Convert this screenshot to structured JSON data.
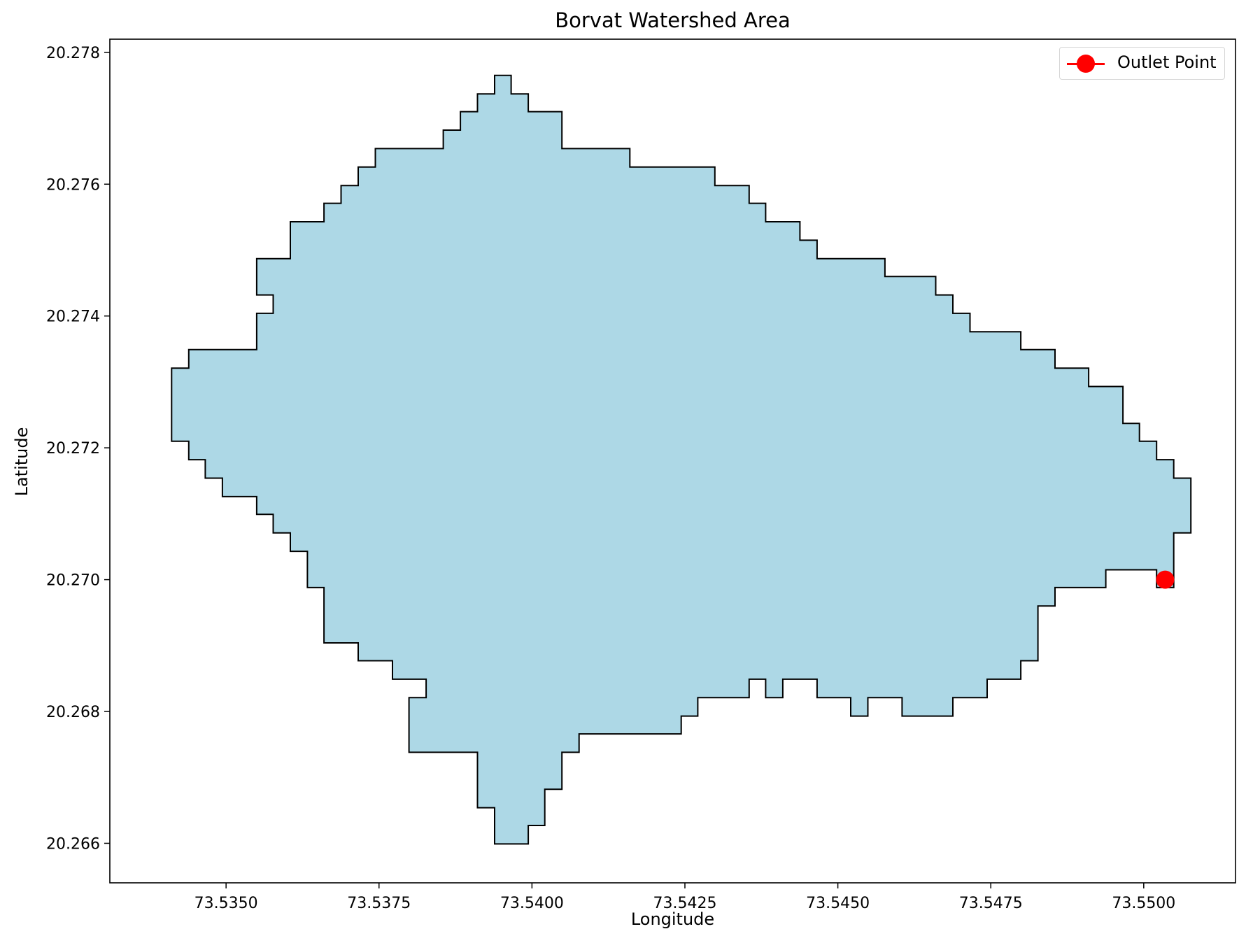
{
  "title": "Borvat Watershed Area",
  "xlabel": "Longitude",
  "ylabel": "Latitude",
  "legend": {
    "label": "Outlet Point",
    "placement": "top-right"
  },
  "colors": {
    "fill": "#add8e6",
    "edge": "#000000",
    "marker": "#ff0000"
  },
  "chart_data": {
    "type": "map",
    "title": "Borvat Watershed Area",
    "xlabel": "Longitude",
    "ylabel": "Latitude",
    "xlim": [
      73.5331,
      73.5515
    ],
    "ylim": [
      20.2654,
      20.2782
    ],
    "xticks": [
      "73.5350",
      "73.5375",
      "73.5400",
      "73.5425",
      "73.5450",
      "73.5475",
      "73.5500"
    ],
    "yticks": [
      "20.266",
      "20.268",
      "20.270",
      "20.272",
      "20.274",
      "20.276",
      "20.278"
    ],
    "grid": false,
    "watershed_boundary": [
      [
        73.53939,
        20.27765
      ],
      [
        73.53966,
        20.27765
      ],
      [
        73.53966,
        20.27737
      ],
      [
        73.53994,
        20.27737
      ],
      [
        73.53994,
        20.2771
      ],
      [
        73.54049,
        20.2771
      ],
      [
        73.54049,
        20.27654
      ],
      [
        73.5416,
        20.27654
      ],
      [
        73.5416,
        20.27626
      ],
      [
        73.54299,
        20.27626
      ],
      [
        73.54299,
        20.27598
      ],
      [
        73.54355,
        20.27598
      ],
      [
        73.54355,
        20.27571
      ],
      [
        73.54382,
        20.27571
      ],
      [
        73.54382,
        20.27543
      ],
      [
        73.54438,
        20.27543
      ],
      [
        73.54438,
        20.27515
      ],
      [
        73.54466,
        20.27515
      ],
      [
        73.54466,
        20.27487
      ],
      [
        73.54577,
        20.27487
      ],
      [
        73.54577,
        20.2746
      ],
      [
        73.5466,
        20.2746
      ],
      [
        73.5466,
        20.27432
      ],
      [
        73.54688,
        20.27432
      ],
      [
        73.54688,
        20.27404
      ],
      [
        73.54716,
        20.27404
      ],
      [
        73.54716,
        20.27376
      ],
      [
        73.54799,
        20.27376
      ],
      [
        73.54799,
        20.27349
      ],
      [
        73.54855,
        20.27349
      ],
      [
        73.54855,
        20.27321
      ],
      [
        73.5491,
        20.27321
      ],
      [
        73.5491,
        20.27293
      ],
      [
        73.54966,
        20.27293
      ],
      [
        73.54966,
        20.27237
      ],
      [
        73.54993,
        20.27237
      ],
      [
        73.54993,
        20.2721
      ],
      [
        73.55021,
        20.2721
      ],
      [
        73.55021,
        20.27182
      ],
      [
        73.55049,
        20.27182
      ],
      [
        73.55049,
        20.27154
      ],
      [
        73.55077,
        20.27154
      ],
      [
        73.55077,
        20.27071
      ],
      [
        73.55049,
        20.27071
      ],
      [
        73.55049,
        20.26988
      ],
      [
        73.55021,
        20.26988
      ],
      [
        73.55021,
        20.27015
      ],
      [
        73.54938,
        20.27015
      ],
      [
        73.54938,
        20.26988
      ],
      [
        73.54855,
        20.26988
      ],
      [
        73.54855,
        20.2696
      ],
      [
        73.54827,
        20.2696
      ],
      [
        73.54827,
        20.26877
      ],
      [
        73.54799,
        20.26877
      ],
      [
        73.54799,
        20.26849
      ],
      [
        73.54744,
        20.26849
      ],
      [
        73.54744,
        20.26821
      ],
      [
        73.54688,
        20.26821
      ],
      [
        73.54688,
        20.26793
      ],
      [
        73.54605,
        20.26793
      ],
      [
        73.54605,
        20.26821
      ],
      [
        73.54549,
        20.26821
      ],
      [
        73.54549,
        20.26793
      ],
      [
        73.54521,
        20.26793
      ],
      [
        73.54521,
        20.26821
      ],
      [
        73.54466,
        20.26821
      ],
      [
        73.54466,
        20.26849
      ],
      [
        73.5441,
        20.26849
      ],
      [
        73.5441,
        20.26821
      ],
      [
        73.54382,
        20.26821
      ],
      [
        73.54382,
        20.26849
      ],
      [
        73.54355,
        20.26849
      ],
      [
        73.54355,
        20.26821
      ],
      [
        73.54271,
        20.26821
      ],
      [
        73.54271,
        20.26793
      ],
      [
        73.54244,
        20.26793
      ],
      [
        73.54244,
        20.26766
      ],
      [
        73.54077,
        20.26766
      ],
      [
        73.54077,
        20.26738
      ],
      [
        73.54049,
        20.26738
      ],
      [
        73.54049,
        20.26682
      ],
      [
        73.54021,
        20.26682
      ],
      [
        73.54021,
        20.26627
      ],
      [
        73.53994,
        20.26627
      ],
      [
        73.53994,
        20.26599
      ],
      [
        73.53939,
        20.26599
      ],
      [
        73.53939,
        20.26654
      ],
      [
        73.53911,
        20.26654
      ],
      [
        73.53911,
        20.26738
      ],
      [
        73.53799,
        20.26738
      ],
      [
        73.53799,
        20.26821
      ],
      [
        73.53827,
        20.26821
      ],
      [
        73.53827,
        20.26849
      ],
      [
        73.53772,
        20.26849
      ],
      [
        73.53772,
        20.26877
      ],
      [
        73.53716,
        20.26877
      ],
      [
        73.53716,
        20.26904
      ],
      [
        73.5366,
        20.26904
      ],
      [
        73.5366,
        20.26988
      ],
      [
        73.53633,
        20.26988
      ],
      [
        73.53633,
        20.27043
      ],
      [
        73.53605,
        20.27043
      ],
      [
        73.53605,
        20.27071
      ],
      [
        73.53577,
        20.27071
      ],
      [
        73.53577,
        20.27099
      ],
      [
        73.5355,
        20.27099
      ],
      [
        73.5355,
        20.27126
      ],
      [
        73.53494,
        20.27126
      ],
      [
        73.53494,
        20.27154
      ],
      [
        73.53466,
        20.27154
      ],
      [
        73.53466,
        20.27182
      ],
      [
        73.53439,
        20.27182
      ],
      [
        73.53439,
        20.2721
      ],
      [
        73.53411,
        20.2721
      ],
      [
        73.53411,
        20.27321
      ],
      [
        73.53439,
        20.27321
      ],
      [
        73.53439,
        20.27349
      ],
      [
        73.5355,
        20.27349
      ],
      [
        73.5355,
        20.27404
      ],
      [
        73.53577,
        20.27404
      ],
      [
        73.53577,
        20.27432
      ],
      [
        73.5355,
        20.27432
      ],
      [
        73.5355,
        20.27487
      ],
      [
        73.53605,
        20.27487
      ],
      [
        73.53605,
        20.27543
      ],
      [
        73.5366,
        20.27543
      ],
      [
        73.5366,
        20.27571
      ],
      [
        73.53688,
        20.27571
      ],
      [
        73.53688,
        20.27598
      ],
      [
        73.53716,
        20.27598
      ],
      [
        73.53716,
        20.27626
      ],
      [
        73.53744,
        20.27626
      ],
      [
        73.53744,
        20.27654
      ],
      [
        73.53855,
        20.27654
      ],
      [
        73.53855,
        20.27682
      ],
      [
        73.53883,
        20.27682
      ],
      [
        73.53883,
        20.2771
      ],
      [
        73.53911,
        20.2771
      ],
      [
        73.53911,
        20.27737
      ],
      [
        73.53939,
        20.27737
      ]
    ],
    "outlet_point": {
      "name": "Outlet Point",
      "lon": 73.55035,
      "lat": 20.27
    }
  }
}
